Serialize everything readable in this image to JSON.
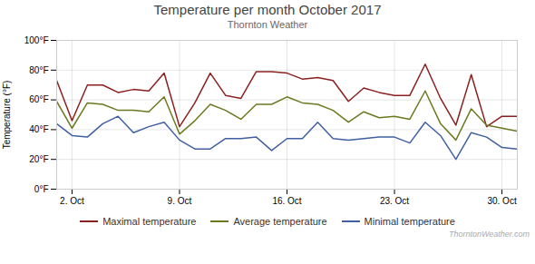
{
  "chart_data": {
    "type": "line",
    "title": "Temperature per month October 2017",
    "subtitle": "Thornton Weather",
    "annotations": [
      "ThorntonWeather.com"
    ],
    "ylabel": "Temperature (°F)",
    "x": [
      1,
      2,
      3,
      4,
      5,
      6,
      7,
      8,
      9,
      10,
      11,
      12,
      13,
      14,
      15,
      16,
      17,
      18,
      19,
      20,
      21,
      22,
      23,
      24,
      25,
      26,
      27,
      28,
      29,
      30,
      31
    ],
    "series": [
      {
        "name": "Maximal temperature",
        "color": "#8b2020",
        "values": [
          73,
          46,
          70,
          70,
          65,
          67,
          66,
          78,
          42,
          58,
          78,
          63,
          61,
          79,
          79,
          78,
          74,
          75,
          73,
          59,
          68,
          65,
          63,
          63,
          84,
          61,
          43,
          77,
          42,
          49,
          49
        ]
      },
      {
        "name": "Average temperature",
        "color": "#6b7a20",
        "values": [
          59,
          41,
          58,
          57,
          53,
          53,
          52,
          62,
          37,
          46,
          57,
          53,
          47,
          57,
          57,
          62,
          58,
          57,
          53,
          45,
          52,
          48,
          49,
          47,
          66,
          44,
          33,
          54,
          43,
          41,
          39
        ]
      },
      {
        "name": "Minimal temperature",
        "color": "#4060a0",
        "values": [
          44,
          36,
          35,
          44,
          49,
          38,
          42,
          45,
          33,
          27,
          27,
          34,
          34,
          35,
          26,
          34,
          34,
          45,
          34,
          33,
          34,
          35,
          35,
          31,
          45,
          36,
          20,
          38,
          35,
          28,
          27
        ]
      }
    ],
    "xlim": [
      1,
      31
    ],
    "xticks": [
      {
        "value": 2,
        "label": "2. Oct"
      },
      {
        "value": 9,
        "label": "9. Oct"
      },
      {
        "value": 16,
        "label": "16. Oct"
      },
      {
        "value": 23,
        "label": "23. Oct"
      },
      {
        "value": 30,
        "label": "30. Oct"
      }
    ],
    "ylim": [
      0,
      100
    ],
    "yticks": [
      {
        "value": 0,
        "label": "0°F"
      },
      {
        "value": 20,
        "label": "20°F"
      },
      {
        "value": 40,
        "label": "40°F"
      },
      {
        "value": 60,
        "label": "60°F"
      },
      {
        "value": 80,
        "label": "80°F"
      },
      {
        "value": 100,
        "label": "100°F"
      }
    ],
    "grid": true,
    "legend": "bottom"
  }
}
